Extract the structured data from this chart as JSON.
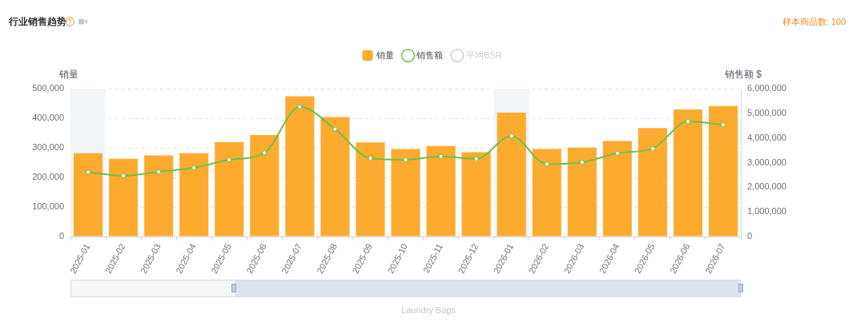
{
  "chart_data": {
    "type": "bar",
    "title": "行业销售趋势",
    "ylabel": "销量",
    "y2label": "销售额 $",
    "categories": [
      "2025-01",
      "2025-02",
      "2025-03",
      "2025-04",
      "2025-05",
      "2025-06",
      "2025-07",
      "2025-08",
      "2025-09",
      "2025-10",
      "2025-11",
      "2025-12",
      "2026-01",
      "2026-02",
      "2026-03",
      "2026-04",
      "2026-05",
      "2026-06",
      "2026-07"
    ],
    "series": [
      {
        "name": "销量",
        "color": "#fdab2f",
        "values": [
          282000,
          263000,
          274000,
          282000,
          319000,
          343000,
          474000,
          404000,
          318000,
          296000,
          306000,
          285000,
          419000,
          296000,
          301000,
          323000,
          367000,
          430000,
          441000
        ]
      },
      {
        "name": "销售额",
        "type": "line",
        "axis": "y2",
        "color": "#6cc04a",
        "values": [
          2610000,
          2470000,
          2630000,
          2790000,
          3110000,
          3400000,
          5270000,
          4360000,
          3180000,
          3120000,
          3250000,
          3150000,
          4080000,
          2940000,
          3010000,
          3380000,
          3570000,
          4670000,
          4540000
        ]
      },
      {
        "name": "平均BSR",
        "type": "line",
        "color": "#cccccc",
        "values": [
          null,
          null,
          null,
          null,
          null,
          null,
          null,
          null,
          null,
          null,
          null,
          null,
          null,
          null,
          null,
          null,
          null,
          null,
          null
        ]
      }
    ],
    "ylim": [
      0,
      500000
    ],
    "yticks": [
      0,
      {
        "value": 100000,
        "label": "100,000"
      },
      {
        "value": 200000,
        "label": "200,000"
      },
      {
        "value": 300000,
        "label": "300,000"
      },
      {
        "value": 400000,
        "label": "400,000"
      },
      {
        "value": 500000,
        "label": "500,000"
      }
    ],
    "y2lim": [
      0,
      6000000
    ],
    "y2ticks": [
      0,
      {
        "value": 1000000,
        "label": "1,000,000"
      },
      {
        "value": 2000000,
        "label": "2,000,000"
      },
      {
        "value": 3000000,
        "label": "3,000,000"
      },
      {
        "value": 4000000,
        "label": "4,000,000"
      },
      {
        "value": 5000000,
        "label": "5,000,000"
      },
      {
        "value": 6000000,
        "label": "6,000,000"
      }
    ],
    "grid": "y",
    "legend": "top",
    "marker": "circle",
    "bands": [
      {
        "axis": "x",
        "from": "2025-01",
        "to": "2025-01",
        "color": "#f3f5f9"
      },
      {
        "axis": "x",
        "from": "2026-01",
        "to": "2026-01",
        "color": "#f3f5f9"
      }
    ],
    "annotations": [
      "样本商品数: 100",
      "Laundry Bags"
    ]
  }
}
